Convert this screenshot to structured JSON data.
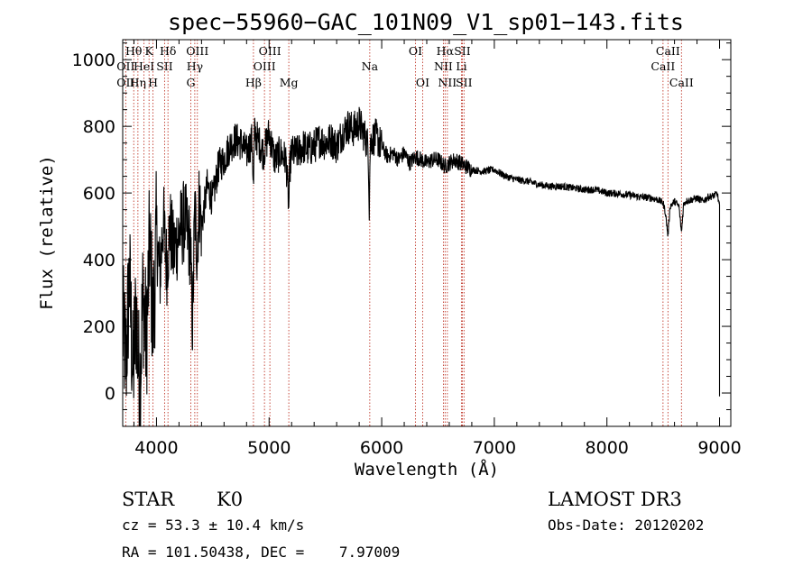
{
  "chart_data": {
    "type": "line",
    "title": "spec−55960−GAC_101N09_V1_sp01−143.fits",
    "xlabel": "Wavelength (Å)",
    "ylabel": "Flux (relative)",
    "xlim": [
      3700,
      9100
    ],
    "ylim": [
      -100,
      1060
    ],
    "xticks": [
      4000,
      5000,
      6000,
      7000,
      8000,
      9000
    ],
    "xtick_labels": [
      "4000",
      "5000",
      "6000",
      "7000",
      "8000",
      "9000"
    ],
    "yticks": [
      0,
      200,
      400,
      600,
      800,
      1000
    ],
    "ytick_labels": [
      "0",
      "200",
      "400",
      "600",
      "800",
      "1000"
    ],
    "grid": false,
    "series": [
      {
        "name": "flux",
        "x": [
          3700,
          3730,
          3760,
          3790,
          3820,
          3850,
          3880,
          3910,
          3940,
          3970,
          4000,
          4030,
          4060,
          4090,
          4120,
          4150,
          4200,
          4250,
          4300,
          4320,
          4340,
          4360,
          4380,
          4400,
          4450,
          4500,
          4550,
          4600,
          4650,
          4700,
          4750,
          4800,
          4850,
          4861,
          4870,
          4900,
          4950,
          5000,
          5050,
          5100,
          5150,
          5175,
          5185,
          5200,
          5250,
          5300,
          5350,
          5400,
          5450,
          5500,
          5550,
          5600,
          5650,
          5700,
          5750,
          5800,
          5850,
          5880,
          5890,
          5896,
          5905,
          5950,
          6000,
          6050,
          6100,
          6150,
          6200,
          6250,
          6300,
          6350,
          6400,
          6450,
          6500,
          6563,
          6600,
          6650,
          6700,
          6800,
          6900,
          7000,
          7100,
          7200,
          7300,
          7400,
          7500,
          7600,
          7700,
          7800,
          7900,
          8000,
          8100,
          8200,
          8300,
          8400,
          8450,
          8500,
          8520,
          8542,
          8560,
          8600,
          8640,
          8662,
          8680,
          8700,
          8750,
          8800,
          8850,
          8900,
          8950,
          8980,
          9000
        ],
        "y": [
          200,
          100,
          350,
          50,
          250,
          0,
          300,
          150,
          450,
          200,
          480,
          350,
          520,
          380,
          500,
          420,
          480,
          520,
          440,
          200,
          550,
          430,
          580,
          500,
          620,
          580,
          680,
          700,
          740,
          760,
          750,
          720,
          760,
          600,
          780,
          760,
          720,
          780,
          700,
          720,
          700,
          560,
          680,
          720,
          720,
          740,
          730,
          740,
          760,
          750,
          760,
          740,
          780,
          800,
          790,
          810,
          770,
          740,
          560,
          720,
          760,
          770,
          740,
          710,
          720,
          700,
          720,
          690,
          710,
          700,
          690,
          700,
          700,
          680,
          690,
          700,
          690,
          670,
          665,
          670,
          650,
          640,
          635,
          625,
          620,
          620,
          615,
          610,
          610,
          600,
          598,
          594,
          588,
          585,
          580,
          570,
          540,
          470,
          560,
          575,
          560,
          480,
          565,
          575,
          580,
          585,
          575,
          588,
          592,
          598,
          560
        ]
      }
    ],
    "spectral_lines": [
      {
        "label": "Hθ",
        "wl": 3798,
        "row": 1
      },
      {
        "label": "OII",
        "wl": 3727,
        "row": 2
      },
      {
        "label": "OII",
        "wl": 3727,
        "row": 3
      },
      {
        "label": "Hη",
        "wl": 3835,
        "row": 3
      },
      {
        "label": "K",
        "wl": 3934,
        "row": 1
      },
      {
        "label": "HeI",
        "wl": 3889,
        "row": 2
      },
      {
        "label": "H",
        "wl": 3969,
        "row": 3
      },
      {
        "label": "SII",
        "wl": 4072,
        "row": 2
      },
      {
        "label": "Hδ",
        "wl": 4102,
        "row": 1
      },
      {
        "label": "OIII",
        "wl": 4363,
        "row": 1
      },
      {
        "label": "Hγ",
        "wl": 4340,
        "row": 2
      },
      {
        "label": "G",
        "wl": 4305,
        "row": 3
      },
      {
        "label": "Hβ",
        "wl": 4861,
        "row": 3
      },
      {
        "label": "OIII",
        "wl": 5007,
        "row": 1
      },
      {
        "label": "OIII",
        "wl": 4959,
        "row": 2
      },
      {
        "label": "Mg",
        "wl": 5175,
        "row": 3
      },
      {
        "label": "Na",
        "wl": 5894,
        "row": 2
      },
      {
        "label": "OI",
        "wl": 6300,
        "row": 1
      },
      {
        "label": "OI",
        "wl": 6364,
        "row": 3
      },
      {
        "label": "Hα",
        "wl": 6563,
        "row": 1
      },
      {
        "label": "NII",
        "wl": 6548,
        "row": 2
      },
      {
        "label": "NII",
        "wl": 6583,
        "row": 3
      },
      {
        "label": "SII",
        "wl": 6716,
        "row": 1
      },
      {
        "label": "Li",
        "wl": 6708,
        "row": 2
      },
      {
        "label": "SII",
        "wl": 6731,
        "row": 3
      },
      {
        "label": "CaII",
        "wl": 8542,
        "row": 1
      },
      {
        "label": "CaII",
        "wl": 8498,
        "row": 2
      },
      {
        "label": "CaII",
        "wl": 8662,
        "row": 3
      }
    ]
  },
  "info": {
    "object_class": "STAR",
    "subclass": "K0",
    "cz": "cz = 53.3 ± 10.4 km/s",
    "coords": "RA = 101.50438, DEC =    7.97009",
    "survey": "LAMOST DR3",
    "obs_date": "Obs-Date: 20120202"
  }
}
